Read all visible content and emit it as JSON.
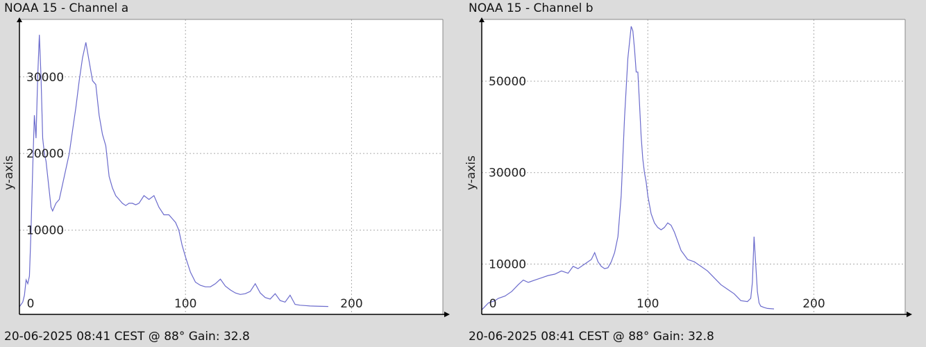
{
  "chart_data": [
    {
      "type": "line",
      "title": "NOAA 15 - Channel a",
      "ylabel": "y-axis",
      "footer": "20-06-2025 08:41 CEST @ 88° Gain: 32.8",
      "xlim": [
        0,
        255
      ],
      "ylim": [
        -1000,
        37500
      ],
      "x_ticks": [
        0,
        100,
        200
      ],
      "y_ticks": [
        10000,
        20000,
        30000
      ],
      "grid": true,
      "line_color": "#6a6acc",
      "series": [
        {
          "x": [
            0,
            2,
            3,
            4,
            5,
            6,
            7,
            8,
            9,
            10,
            11,
            12,
            13,
            14,
            15,
            16,
            17,
            18,
            19,
            20,
            22,
            24,
            26,
            28,
            30,
            32,
            34,
            36,
            38,
            40,
            42,
            44,
            46,
            48,
            50,
            52,
            54,
            56,
            58,
            60,
            62,
            64,
            66,
            68,
            70,
            72,
            75,
            78,
            81,
            84,
            87,
            90,
            92,
            94,
            96,
            98,
            100,
            103,
            106,
            109,
            112,
            115,
            118,
            121,
            124,
            127,
            130,
            133,
            136,
            139,
            142,
            145,
            148,
            151,
            154,
            157,
            160,
            163,
            166,
            169,
            172,
            175,
            178,
            182,
            186
          ],
          "values": [
            0,
            600,
            1500,
            3500,
            3000,
            4000,
            10000,
            18000,
            25000,
            22000,
            30000,
            35500,
            30000,
            22000,
            20000,
            19000,
            17000,
            15000,
            13000,
            12500,
            13500,
            14000,
            16000,
            18000,
            20000,
            23000,
            26000,
            29500,
            32500,
            34500,
            32000,
            29500,
            29000,
            25000,
            22500,
            21000,
            17000,
            15500,
            14500,
            14000,
            13500,
            13200,
            13500,
            13500,
            13300,
            13500,
            14500,
            14000,
            14500,
            13000,
            12000,
            12000,
            11500,
            11000,
            10000,
            8000,
            6500,
            4500,
            3200,
            2800,
            2600,
            2600,
            3000,
            3600,
            2700,
            2200,
            1800,
            1600,
            1700,
            2000,
            3000,
            1800,
            1200,
            1000,
            1700,
            800,
            600,
            1500,
            300,
            200,
            150,
            100,
            80,
            50,
            30
          ]
        }
      ]
    },
    {
      "type": "line",
      "title": "NOAA 15 - Channel b",
      "ylabel": "y-axis",
      "footer": "20-06-2025 08:41 CEST @ 88° Gain: 32.8",
      "xlim": [
        0,
        255
      ],
      "ylim": [
        -1000,
        63500
      ],
      "x_ticks": [
        0,
        100,
        200
      ],
      "y_ticks": [
        10000,
        30000,
        50000
      ],
      "grid": true,
      "line_color": "#6a6acc",
      "series": [
        {
          "x": [
            0,
            4,
            8,
            10,
            14,
            18,
            22,
            25,
            28,
            32,
            36,
            40,
            44,
            48,
            52,
            55,
            58,
            62,
            66,
            68,
            70,
            72,
            74,
            76,
            78,
            80,
            82,
            84,
            86,
            88,
            90,
            91,
            92,
            93,
            94,
            95,
            96,
            97,
            98,
            99,
            100,
            102,
            104,
            106,
            108,
            110,
            112,
            114,
            116,
            118,
            120,
            124,
            128,
            132,
            136,
            140,
            144,
            148,
            152,
            156,
            160,
            162,
            163,
            164,
            165,
            166,
            167,
            168,
            170,
            172,
            176
          ],
          "values": [
            0,
            1500,
            2000,
            2500,
            3000,
            4000,
            5500,
            6500,
            6000,
            6500,
            7000,
            7500,
            7800,
            8500,
            8000,
            9500,
            9000,
            10000,
            11000,
            12500,
            10500,
            9500,
            9000,
            9200,
            10500,
            12500,
            16000,
            25000,
            42000,
            55000,
            62000,
            61000,
            57000,
            52000,
            52000,
            45000,
            38000,
            33000,
            30000,
            28000,
            25000,
            21000,
            19000,
            18000,
            17500,
            18000,
            19000,
            18500,
            17000,
            15000,
            13000,
            11000,
            10500,
            9500,
            8500,
            7000,
            5500,
            4500,
            3500,
            2000,
            1800,
            2500,
            6000,
            16000,
            10000,
            4000,
            1500,
            800,
            500,
            300,
            200
          ]
        }
      ]
    }
  ]
}
